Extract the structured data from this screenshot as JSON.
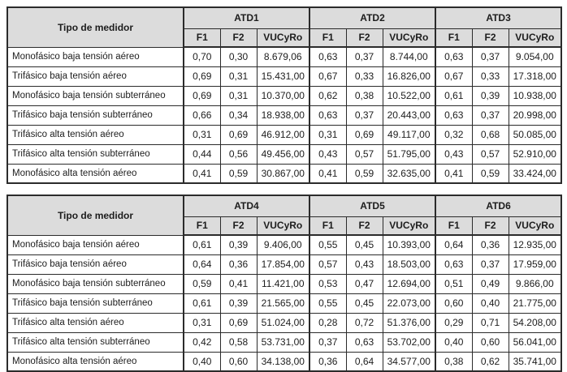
{
  "meter_type_header": "Tipo de medidor",
  "sub_headers": [
    "F1",
    "F2",
    "VUCyRo"
  ],
  "row_labels": [
    "Monofásico baja tensión aéreo",
    "Trifásico baja tensión aéreo",
    "Monofásico baja tensión subterráneo",
    "Trifásico baja tensión subterráneo",
    "Trifásico alta tensión aéreo",
    "Trifásico alta tensión subterráneo",
    "Monofásico alta tensión aéreo"
  ],
  "tables": [
    {
      "groups": [
        {
          "name": "ATD1",
          "rows": [
            [
              "0,70",
              "0,30",
              "8.679,06"
            ],
            [
              "0,69",
              "0,31",
              "15.431,00"
            ],
            [
              "0,69",
              "0,31",
              "10.370,00"
            ],
            [
              "0,66",
              "0,34",
              "18.938,00"
            ],
            [
              "0,31",
              "0,69",
              "46.912,00"
            ],
            [
              "0,44",
              "0,56",
              "49.456,00"
            ],
            [
              "0,41",
              "0,59",
              "30.867,00"
            ]
          ]
        },
        {
          "name": "ATD2",
          "rows": [
            [
              "0,63",
              "0,37",
              "8.744,00"
            ],
            [
              "0,67",
              "0,33",
              "16.826,00"
            ],
            [
              "0,62",
              "0,38",
              "10.522,00"
            ],
            [
              "0,63",
              "0,37",
              "20.443,00"
            ],
            [
              "0,31",
              "0,69",
              "49.117,00"
            ],
            [
              "0,43",
              "0,57",
              "51.795,00"
            ],
            [
              "0,41",
              "0,59",
              "32.635,00"
            ]
          ]
        },
        {
          "name": "ATD3",
          "rows": [
            [
              "0,63",
              "0,37",
              "9.054,00"
            ],
            [
              "0,67",
              "0,33",
              "17.318,00"
            ],
            [
              "0,61",
              "0,39",
              "10.938,00"
            ],
            [
              "0,63",
              "0,37",
              "20.998,00"
            ],
            [
              "0,32",
              "0,68",
              "50.085,00"
            ],
            [
              "0,43",
              "0,57",
              "52.910,00"
            ],
            [
              "0,41",
              "0,59",
              "33.424,00"
            ]
          ]
        }
      ]
    },
    {
      "groups": [
        {
          "name": "ATD4",
          "rows": [
            [
              "0,61",
              "0,39",
              "9.406,00"
            ],
            [
              "0,64",
              "0,36",
              "17.854,00"
            ],
            [
              "0,59",
              "0,41",
              "11.421,00"
            ],
            [
              "0,61",
              "0,39",
              "21.565,00"
            ],
            [
              "0,31",
              "0,69",
              "51.024,00"
            ],
            [
              "0,42",
              "0,58",
              "53.731,00"
            ],
            [
              "0,40",
              "0,60",
              "34.138,00"
            ]
          ]
        },
        {
          "name": "ATD5",
          "rows": [
            [
              "0,55",
              "0,45",
              "10.393,00"
            ],
            [
              "0,57",
              "0,43",
              "18.503,00"
            ],
            [
              "0,53",
              "0,47",
              "12.694,00"
            ],
            [
              "0,55",
              "0,45",
              "22.073,00"
            ],
            [
              "0,28",
              "0,72",
              "51.376,00"
            ],
            [
              "0,37",
              "0,63",
              "53.702,00"
            ],
            [
              "0,36",
              "0,64",
              "34.577,00"
            ]
          ]
        },
        {
          "name": "ATD6",
          "rows": [
            [
              "0,64",
              "0,36",
              "12.935,00"
            ],
            [
              "0,63",
              "0,37",
              "17.959,00"
            ],
            [
              "0,51",
              "0,49",
              "9.866,00"
            ],
            [
              "0,60",
              "0,40",
              "21.775,00"
            ],
            [
              "0,29",
              "0,71",
              "54.208,00"
            ],
            [
              "0,40",
              "0,60",
              "56.041,00"
            ],
            [
              "0,38",
              "0,62",
              "35.741,00"
            ]
          ]
        }
      ]
    }
  ],
  "colors": {
    "header_bg": "#dcdcdc",
    "border": "#2b2b2b",
    "text": "#1d1d1d",
    "page_bg": "#ffffff"
  }
}
